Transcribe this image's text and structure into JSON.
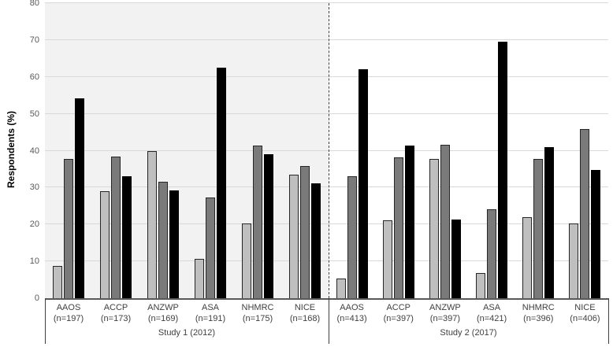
{
  "chart_data": {
    "type": "bar",
    "title": "",
    "ylabel": "Respondents (%)",
    "xlabel": "",
    "ylim": [
      0,
      80
    ],
    "yticks": [
      "0",
      "10",
      "20",
      "30",
      "40",
      "50",
      "60",
      "70",
      "80"
    ],
    "grid": true,
    "legend": "none",
    "panel_separator": "dashed-vertical-line",
    "colors": {
      "series_light_gray": "#bfbfbf",
      "series_mid_gray": "#7a7a7a",
      "series_black": "#000000",
      "panel1_background": "#f2f2f2",
      "panel2_background": "#ffffff",
      "gridline": "#d9d9d9",
      "axis_line": "#595959"
    },
    "panels": [
      {
        "label": "Study 1 (2012)",
        "background": "#f2f2f2",
        "categories": [
          "AAOS",
          "ACCP",
          "ANZWP",
          "ASA",
          "NHMRC",
          "NICE"
        ],
        "n_labels": [
          "(n=197)",
          "(n=173)",
          "(n=169)",
          "(n=191)",
          "(n=175)",
          "(n=168)"
        ],
        "series": [
          {
            "name": "series_light_gray",
            "color": "#bfbfbf",
            "values": [
              8.6,
              28.9,
              39.6,
              10.4,
              20.0,
              33.3
            ]
          },
          {
            "name": "series_mid_gray",
            "color": "#7a7a7a",
            "values": [
              37.6,
              38.2,
              31.4,
              27.2,
              41.1,
              35.6
            ]
          },
          {
            "name": "series_black",
            "color": "#000000",
            "values": [
              53.9,
              32.9,
              29.0,
              62.4,
              38.9,
              31.0
            ]
          }
        ]
      },
      {
        "label": "Study 2 (2017)",
        "background": "#ffffff",
        "categories": [
          "AAOS",
          "ACCP",
          "ANZWP",
          "ASA",
          "NHMRC",
          "NICE"
        ],
        "n_labels": [
          "(n=413)",
          "(n=397)",
          "(n=397)",
          "(n=421)",
          "(n=396)",
          "(n=406)"
        ],
        "series": [
          {
            "name": "series_light_gray",
            "color": "#bfbfbf",
            "values": [
              5.1,
              20.9,
              37.5,
              6.7,
              21.7,
              20.0
            ]
          },
          {
            "name": "series_mid_gray",
            "color": "#7a7a7a",
            "values": [
              32.9,
              38.0,
              41.3,
              24.0,
              37.6,
              45.6
            ]
          },
          {
            "name": "series_black",
            "color": "#000000",
            "values": [
              61.8,
              41.1,
              21.2,
              69.4,
              40.7,
              34.5
            ]
          }
        ]
      }
    ]
  }
}
